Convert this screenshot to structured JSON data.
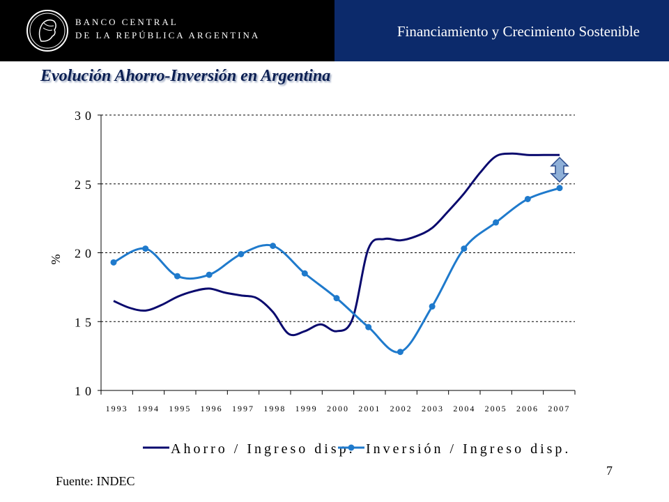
{
  "header": {
    "bank_name_line1": "BANCO CENTRAL",
    "bank_name_line2": "DE LA REPÚBLICA ARGENTINA",
    "title": "Financiamiento y Crecimiento Sostenible",
    "colors": {
      "left": "#000000",
      "right": "#0c2a6b"
    }
  },
  "page_title": "Evolución Ahorro-Inversión en Argentina",
  "chart_data": {
    "type": "line",
    "ylabel": "%",
    "ylim": [
      10,
      30
    ],
    "yticks": [
      "10",
      "15",
      "20",
      "25",
      "30"
    ],
    "xlim": [
      1993,
      2007
    ],
    "categories": [
      "1993",
      "1994",
      "1995",
      "1996",
      "1997",
      "1998",
      "1999",
      "2000",
      "2001",
      "2002",
      "2003",
      "2004",
      "2005",
      "2006",
      "2007"
    ],
    "grid": "horizontal dashed",
    "legend_position": "bottom",
    "series": [
      {
        "name": "Ahorro / Ingreso disp.",
        "color": "#0a0a6e",
        "markers": false,
        "x": [
          1993.0,
          1993.5,
          1994.0,
          1994.5,
          1995.0,
          1995.5,
          1996.0,
          1996.5,
          1997.0,
          1997.5,
          1998.0,
          1998.5,
          1999.0,
          1999.5,
          2000.0,
          2000.5,
          2001.0,
          2001.5,
          2002.0,
          2002.5,
          2003.0,
          2003.5,
          2004.0,
          2004.5,
          2005.0,
          2005.5,
          2006.0,
          2006.5,
          2007.0
        ],
        "y": [
          16.5,
          16.0,
          15.8,
          16.2,
          16.8,
          17.2,
          17.4,
          17.1,
          16.9,
          16.7,
          15.7,
          14.1,
          14.3,
          14.8,
          14.3,
          15.2,
          20.3,
          21.0,
          20.9,
          21.2,
          21.8,
          23.0,
          24.3,
          25.8,
          27.0,
          27.2,
          27.1,
          27.1,
          27.1
        ]
      },
      {
        "name": "Inversión / Ingreso disp.",
        "color": "#1f7acc",
        "markers": true,
        "x": [
          1993.0,
          1994.0,
          1995.0,
          1996.0,
          1997.0,
          1998.0,
          1999.0,
          2000.0,
          2001.0,
          2002.0,
          2003.0,
          2004.0,
          2005.0,
          2006.0,
          2007.0
        ],
        "y": [
          19.3,
          20.3,
          18.3,
          18.4,
          19.9,
          20.5,
          18.5,
          16.7,
          14.6,
          12.8,
          16.1,
          20.3,
          22.2,
          23.9,
          24.7
        ]
      }
    ]
  },
  "footnote": "Fuente: INDEC",
  "page_number": "7"
}
